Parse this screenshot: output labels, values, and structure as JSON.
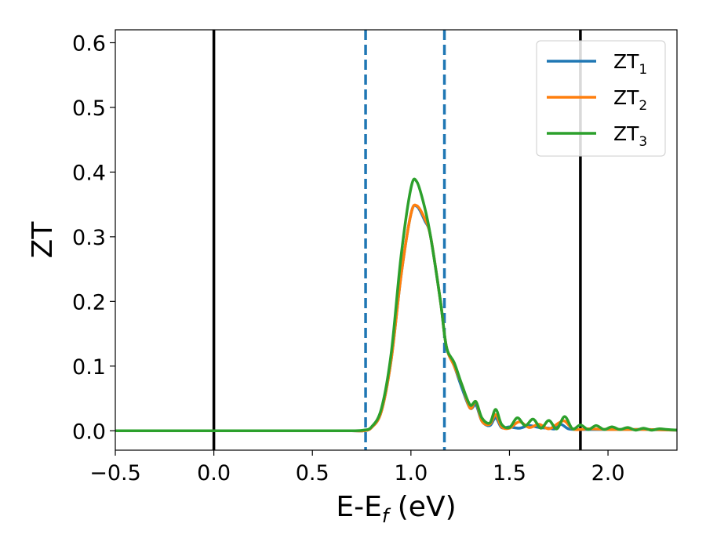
{
  "chart_data": {
    "type": "line",
    "title": "",
    "xlabel": "E-E",
    "xlabel_sub": "f",
    "xlabel_unit": " (eV)",
    "ylabel": "ZT",
    "xlim": [
      -0.5,
      2.35
    ],
    "ylim": [
      -0.03,
      0.62
    ],
    "xticks": [
      -0.5,
      0.0,
      0.5,
      1.0,
      1.5,
      2.0
    ],
    "xtick_labels": [
      "−0.5",
      "0.0",
      "0.5",
      "1.0",
      "1.5",
      "2.0"
    ],
    "yticks": [
      0.0,
      0.1,
      0.2,
      0.3,
      0.4,
      0.5,
      0.6
    ],
    "ytick_labels": [
      "0.0",
      "0.1",
      "0.2",
      "0.3",
      "0.4",
      "0.5",
      "0.6"
    ],
    "grid": false,
    "legend_position": "top-right",
    "vertical_lines": [
      {
        "x": 0.0,
        "style": "solid",
        "color": "#000000"
      },
      {
        "x": 1.86,
        "style": "solid",
        "color": "#000000"
      },
      {
        "x": 0.77,
        "style": "dashed",
        "color": "#1f77b4"
      },
      {
        "x": 1.17,
        "style": "dashed",
        "color": "#1f77b4"
      }
    ],
    "series": [
      {
        "name": "ZT",
        "name_sub": "1",
        "color": "#1f77b4",
        "x": [
          -0.5,
          0.0,
          0.5,
          0.7,
          0.76,
          0.8,
          0.85,
          0.9,
          0.95,
          1.0,
          1.03,
          1.07,
          1.1,
          1.15,
          1.18,
          1.22,
          1.26,
          1.3,
          1.33,
          1.36,
          1.4,
          1.43,
          1.46,
          1.5,
          1.55,
          1.6,
          1.65,
          1.7,
          1.73,
          1.76,
          1.8,
          1.85,
          1.9,
          2.0,
          2.1,
          2.2,
          2.35
        ],
        "y": [
          0.0,
          0.0,
          0.0,
          0.0,
          0.0,
          0.005,
          0.03,
          0.11,
          0.24,
          0.335,
          0.347,
          0.325,
          0.3,
          0.2,
          0.13,
          0.1,
          0.065,
          0.035,
          0.04,
          0.015,
          0.008,
          0.02,
          0.005,
          0.006,
          0.004,
          0.008,
          0.005,
          0.004,
          0.003,
          0.01,
          0.003,
          0.002,
          0.002,
          0.002,
          0.002,
          0.002,
          0.001
        ]
      },
      {
        "name": "ZT",
        "name_sub": "2",
        "color": "#ff7f0e",
        "x": [
          -0.5,
          0.0,
          0.5,
          0.7,
          0.76,
          0.8,
          0.85,
          0.9,
          0.95,
          1.0,
          1.03,
          1.07,
          1.1,
          1.15,
          1.18,
          1.22,
          1.26,
          1.3,
          1.33,
          1.36,
          1.4,
          1.43,
          1.46,
          1.5,
          1.55,
          1.6,
          1.65,
          1.7,
          1.75,
          1.78,
          1.82,
          1.86,
          1.9,
          2.0,
          2.1,
          2.2,
          2.35
        ],
        "y": [
          0.0,
          0.0,
          0.0,
          0.0,
          0.0,
          0.005,
          0.03,
          0.11,
          0.24,
          0.335,
          0.348,
          0.328,
          0.3,
          0.2,
          0.13,
          0.1,
          0.07,
          0.035,
          0.045,
          0.015,
          0.01,
          0.025,
          0.006,
          0.004,
          0.014,
          0.005,
          0.01,
          0.003,
          0.012,
          0.015,
          0.003,
          0.002,
          0.003,
          0.002,
          0.002,
          0.002,
          0.001
        ]
      },
      {
        "name": "ZT",
        "name_sub": "3",
        "color": "#2ca02c",
        "x": [
          -0.5,
          0.0,
          0.5,
          0.7,
          0.76,
          0.8,
          0.85,
          0.9,
          0.95,
          1.0,
          1.03,
          1.07,
          1.1,
          1.15,
          1.18,
          1.22,
          1.26,
          1.3,
          1.33,
          1.36,
          1.4,
          1.43,
          1.46,
          1.5,
          1.54,
          1.58,
          1.62,
          1.66,
          1.7,
          1.74,
          1.78,
          1.82,
          1.86,
          1.9,
          1.94,
          1.98,
          2.02,
          2.06,
          2.1,
          2.14,
          2.18,
          2.22,
          2.26,
          2.3,
          2.35
        ],
        "y": [
          0.0,
          0.0,
          0.0,
          0.0,
          0.001,
          0.006,
          0.034,
          0.12,
          0.27,
          0.375,
          0.385,
          0.345,
          0.3,
          0.2,
          0.13,
          0.105,
          0.07,
          0.04,
          0.045,
          0.02,
          0.012,
          0.033,
          0.01,
          0.005,
          0.02,
          0.008,
          0.018,
          0.004,
          0.016,
          0.003,
          0.022,
          0.003,
          0.009,
          0.002,
          0.008,
          0.002,
          0.006,
          0.002,
          0.005,
          0.001,
          0.004,
          0.001,
          0.003,
          0.002,
          0.001
        ]
      }
    ]
  }
}
